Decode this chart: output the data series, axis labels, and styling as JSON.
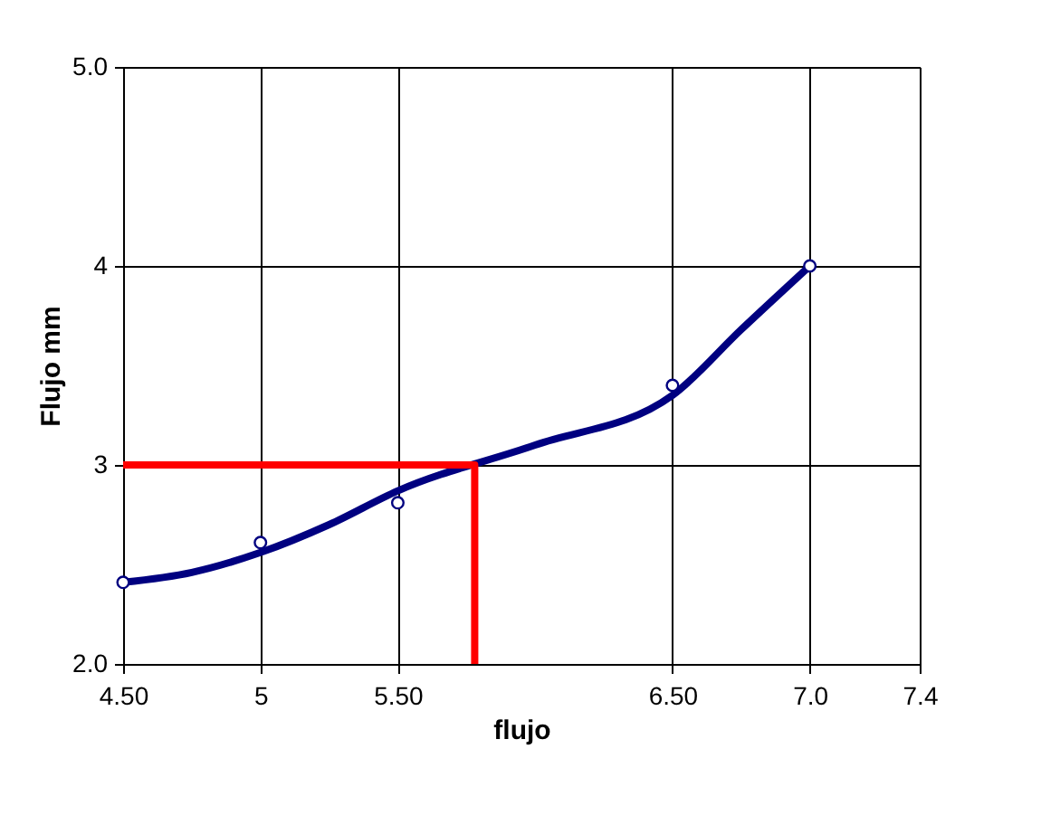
{
  "chart_data": {
    "type": "scatter",
    "xlabel": "flujo",
    "ylabel": "Flujo mm",
    "xlim": [
      4.5,
      7.4
    ],
    "ylim": [
      2.0,
      5.0
    ],
    "xticks": [
      {
        "value": 4.5,
        "label": "4.50"
      },
      5,
      {
        "value": 5.5,
        "label": "5.50"
      },
      {
        "value": 6.5,
        "label": "6.50"
      },
      {
        "value": 7.0,
        "label": "7.0"
      },
      7.4
    ],
    "yticks": [
      {
        "value": 2,
        "label": "2.0"
      },
      3,
      4,
      {
        "value": 5,
        "label": "5.0"
      }
    ],
    "grid": true,
    "series": [
      {
        "type": "line",
        "color": "#000080",
        "x": [
          4.5,
          4.75,
          5.0,
          5.25,
          5.5,
          6.0,
          6.5,
          6.75,
          7.0
        ],
        "values": [
          2.41,
          2.46,
          2.56,
          2.7,
          2.87,
          3.1,
          3.35,
          3.68,
          4.0
        ],
        "marker": "none",
        "line_style": "solid"
      },
      {
        "color": "#000080",
        "x": [
          4.5,
          5.0,
          5.5,
          6.5,
          7.0
        ],
        "values": [
          2.41,
          2.61,
          2.81,
          3.4,
          4.0
        ],
        "marker": "circle"
      },
      {
        "type": "line",
        "color": "#ff0000",
        "x": [
          4.5,
          5.78,
          5.78
        ],
        "values": [
          3.0,
          3.0,
          2.0
        ],
        "marker": "none",
        "line_style": "solid"
      }
    ]
  }
}
